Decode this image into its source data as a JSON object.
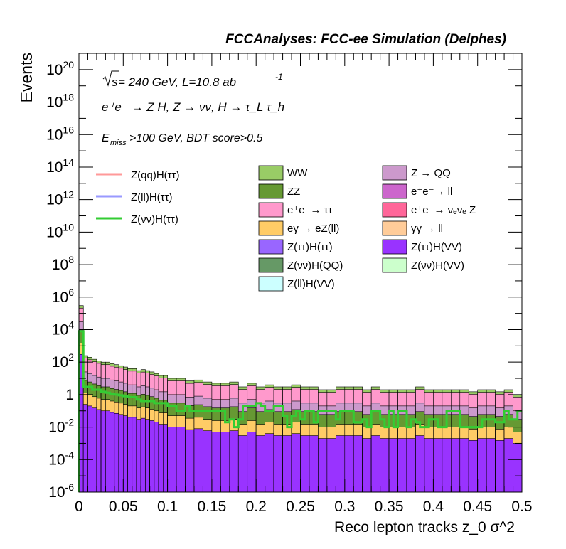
{
  "chart_data": {
    "type": "bar",
    "stacked": true,
    "title": "FCCAnalyses: FCC-ee Simulation (Delphes)",
    "xlabel": "Reco lepton tracks z_0 σ^2",
    "ylabel": "Events",
    "xlim": [
      0,
      0.5
    ],
    "ylim": [
      1e-06,
      1e+21
    ],
    "yscale": "log",
    "grid": false,
    "annotations": {
      "energy_prefix": "s",
      "energy_text": " = 240 GeV, L=10.8 ab",
      "energy_exp": "-1",
      "process_line": "e⁺e⁻ → Z H, Z → νν, H → τ_L τ_h",
      "cut_line_sym": "E",
      "cut_line_sub": "miss",
      "cut_line_rest": ">100 GeV, BDT score>0.5"
    },
    "x_ticks": [
      "0",
      "0.05",
      "0.1",
      "0.15",
      "0.2",
      "0.25",
      "0.3",
      "0.35",
      "0.4",
      "0.45",
      "0.5"
    ],
    "x_tick_values": [
      0,
      0.05,
      0.1,
      0.15,
      0.2,
      0.25,
      0.3,
      0.35,
      0.4,
      0.45,
      0.5
    ],
    "y_ticks": [
      {
        "base": "10",
        "exp": "-6",
        "value": 1e-06
      },
      {
        "base": "10",
        "exp": "-4",
        "value": 0.0001
      },
      {
        "base": "10",
        "exp": "-2",
        "value": 0.01
      },
      {
        "base": "1",
        "exp": "",
        "value": 1
      },
      {
        "base": "10",
        "exp": "2",
        "value": 100.0
      },
      {
        "base": "10",
        "exp": "4",
        "value": 10000.0
      },
      {
        "base": "10",
        "exp": "6",
        "value": 1000000.0
      },
      {
        "base": "10",
        "exp": "8",
        "value": 100000000.0
      },
      {
        "base": "10",
        "exp": "10",
        "value": 10000000000.0
      },
      {
        "base": "10",
        "exp": "12",
        "value": 1000000000000.0
      },
      {
        "base": "10",
        "exp": "14",
        "value": 100000000000000.0
      },
      {
        "base": "10",
        "exp": "16",
        "value": 1e+16
      },
      {
        "base": "10",
        "exp": "18",
        "value": 1e+18
      },
      {
        "base": "10",
        "exp": "20",
        "value": 1e+20
      }
    ],
    "bin_width": 0.005,
    "background_series": [
      {
        "name": "WW",
        "color": "#99cc66",
        "edges": [
          0,
          0.005,
          0.01,
          0.015,
          0.02,
          0.025,
          0.03,
          0.035,
          0.04,
          0.045,
          0.05,
          0.055,
          0.06,
          0.065,
          0.07,
          0.075,
          0.08,
          0.085,
          0.09,
          0.095,
          0.1,
          0.11,
          0.12,
          0.13,
          0.14,
          0.15,
          0.16,
          0.17,
          0.18,
          0.19,
          0.2,
          0.21,
          0.22,
          0.23,
          0.24,
          0.25,
          0.26,
          0.27,
          0.28,
          0.29,
          0.3,
          0.31,
          0.32,
          0.33,
          0.34,
          0.35,
          0.36,
          0.37,
          0.38,
          0.39,
          0.4,
          0.41,
          0.42,
          0.43,
          0.44,
          0.45,
          0.46,
          0.47,
          0.48,
          0.49,
          0.5
        ],
        "totals": [
          300000.0,
          250,
          200,
          150,
          120,
          100,
          100,
          80,
          70,
          60,
          50,
          40,
          40,
          30,
          35,
          30,
          25,
          20,
          15,
          15,
          10,
          10,
          7,
          8,
          6,
          5,
          5,
          6,
          3,
          5,
          3,
          4,
          3,
          3,
          4,
          3,
          3,
          2,
          2,
          3,
          3,
          3,
          2,
          3,
          2,
          2,
          2,
          2,
          3,
          2,
          2,
          2,
          2,
          2,
          1.5,
          2,
          2,
          1.5,
          2,
          1
        ]
      },
      {
        "name": "Z → QQ",
        "color": "#cc99cc",
        "totals_fraction": 0.6
      },
      {
        "name": "ZZ",
        "color": "#669933"
      },
      {
        "name": "e⁺e⁻→ ll",
        "color": "#cc66cc"
      },
      {
        "name": "e⁺e⁻→ ττ",
        "color": "#ff99cc"
      },
      {
        "name": "e⁺e⁻→ νₑνₑ Z",
        "color": "#ff6699"
      },
      {
        "name": "eγ → eZ(ll)",
        "color": "#ffcc66"
      },
      {
        "name": "γγ → ll",
        "color": "#ffcc99"
      },
      {
        "name": "Z(ττ)H(ττ)",
        "color": "#9966ff"
      },
      {
        "name": "Z(ττ)H(VV)",
        "color": "#9933ff"
      },
      {
        "name": "Z(νν)H(QQ)",
        "color": "#669966"
      },
      {
        "name": "Z(νν)H(VV)",
        "color": "#ccffcc"
      },
      {
        "name": "Z(ll)H(VV)",
        "color": "#ccffff"
      }
    ],
    "signal_series": [
      {
        "name": "Z(qq)H(ττ)",
        "color": "#ff9999"
      },
      {
        "name": "Z(ll)H(ττ)",
        "color": "#9999ff"
      },
      {
        "name": "Z(νν)H(ττ)",
        "color": "#33cc33",
        "values": [
          8000,
          3,
          3,
          2,
          2,
          1.5,
          1.3,
          1.1,
          1.0,
          0.9,
          0.8,
          0.7,
          0.7,
          0.5,
          0.4,
          0.4,
          0.4,
          0.3,
          0.3,
          0.3,
          0.2,
          0.2,
          0.1,
          0.1,
          0.2,
          0.1,
          0.1,
          0.1,
          0.1,
          0.1,
          0.1,
          0.1,
          0.1,
          0.02,
          0.03,
          0.01,
          0.03,
          0.2,
          0.2,
          0.2,
          0.3,
          0.2,
          0.1,
          0.1,
          0.2,
          0.2,
          0.05,
          0.01,
          0.05,
          0.1,
          0.03,
          0.1,
          0.1,
          0.02,
          0.1,
          0.1,
          0.1,
          0.1,
          0.03,
          0.1,
          0.1,
          0.1,
          0.02,
          0.02,
          0.03,
          0.01,
          0.1,
          0.1,
          0.03,
          0.01,
          0.1,
          0.01,
          0.1,
          0.1,
          0.01,
          0.03,
          0.02,
          0.01,
          0.01,
          0.03,
          0.03,
          0.01,
          0.01,
          0.1,
          0.1,
          0.1,
          0.01,
          0.01,
          0.01,
          0.01,
          0.01,
          0.03,
          0.03,
          0.03,
          0.02,
          0.02,
          0.1,
          0.03,
          0.03,
          0.1
        ]
      }
    ]
  }
}
